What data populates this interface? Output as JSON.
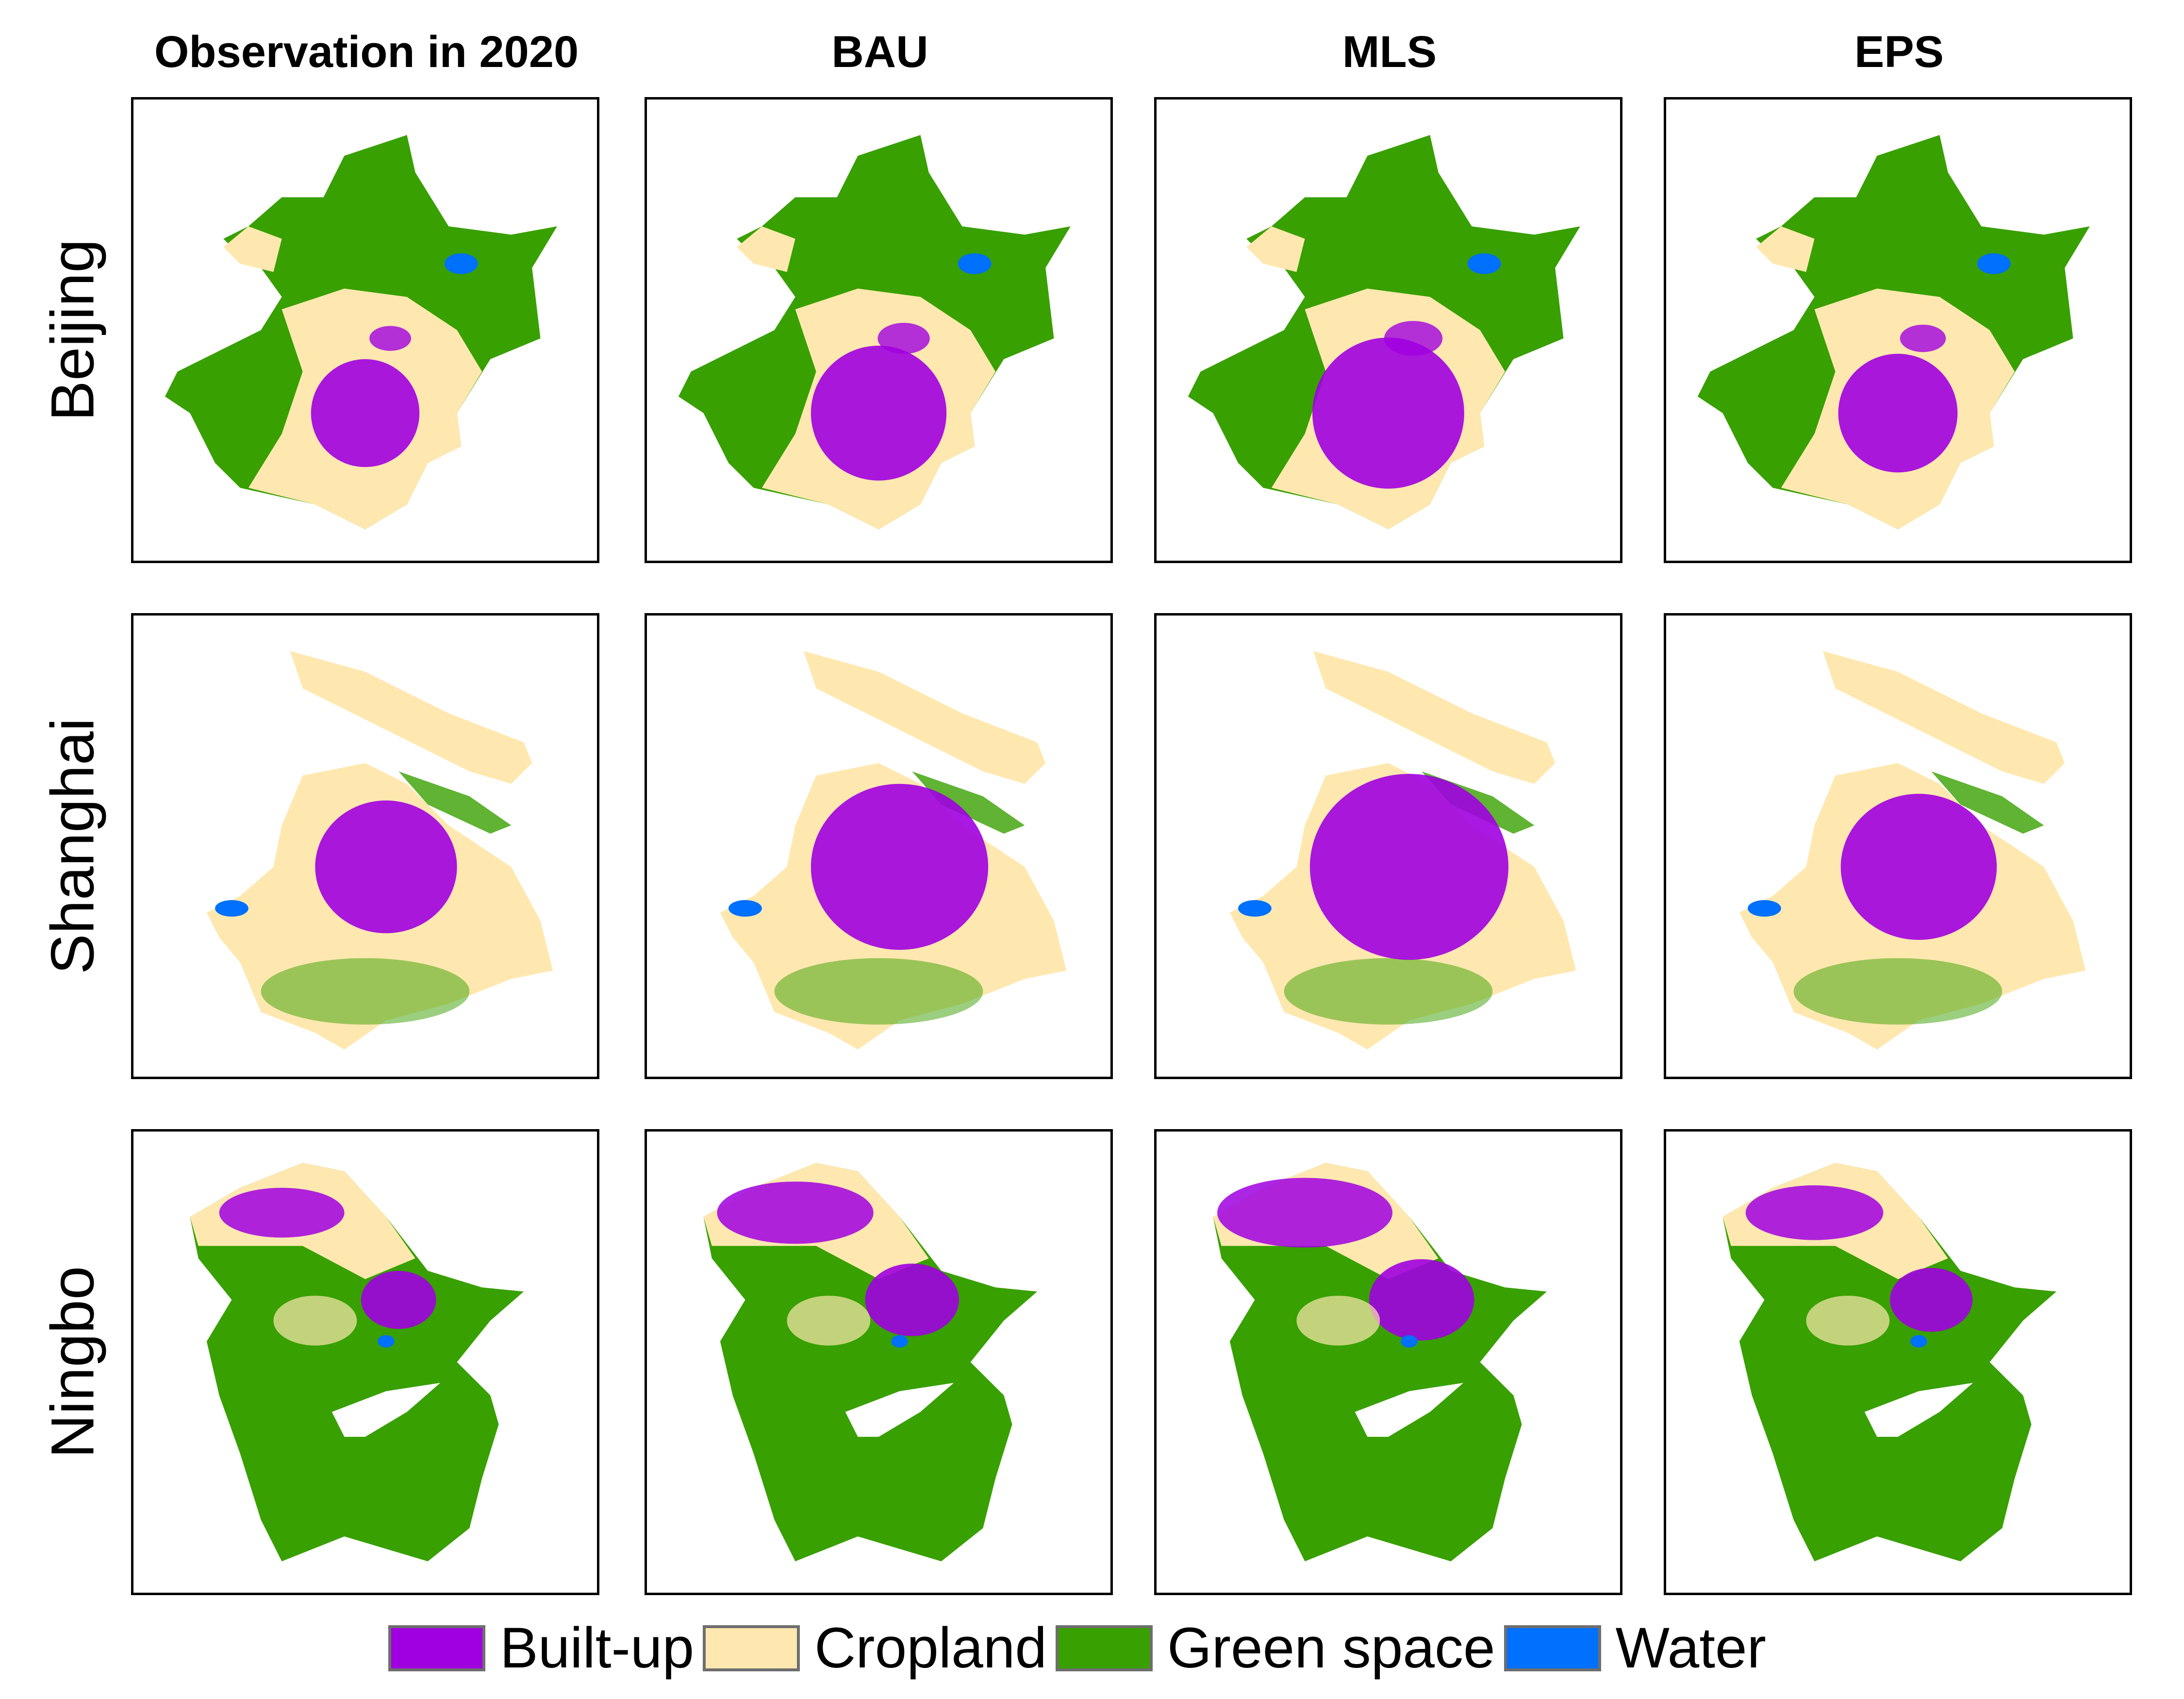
{
  "columns": [
    "Observation in 2020",
    "BAU",
    "MLS",
    "EPS"
  ],
  "rows": [
    "Beijing",
    "Shanghai",
    "Ningbo"
  ],
  "legend": [
    {
      "label": "Built-up",
      "color": "#a000e0"
    },
    {
      "label": "Cropland",
      "color": "#ffe8b0"
    },
    {
      "label": "Green space",
      "color": "#38a000"
    },
    {
      "label": "Water",
      "color": "#0070ff"
    }
  ]
}
